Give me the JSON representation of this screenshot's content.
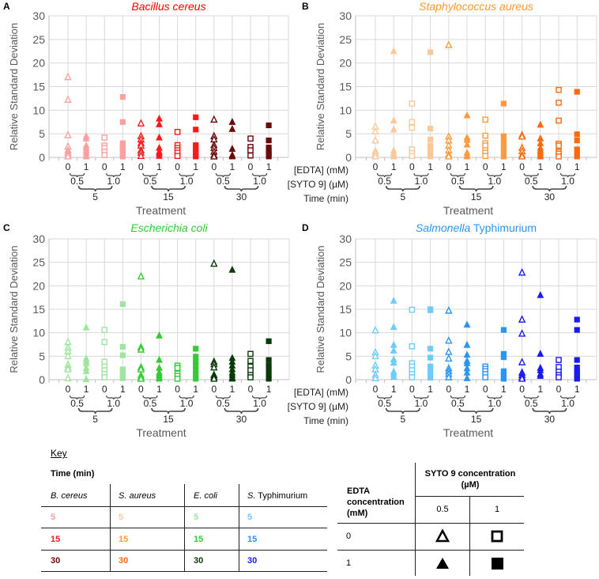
{
  "chart_data": [
    {
      "type": "scatter",
      "panel_label": "A",
      "title_parts": [
        {
          "text": "Bacillus cereus",
          "italic": true
        }
      ],
      "title_color": "#ff0000",
      "ylabel": "Relative Standard Deviation",
      "xlabel": "Treatment",
      "ylim": [
        0,
        30
      ],
      "yticks": [
        "0",
        "5",
        "10",
        "15",
        "20",
        "25",
        "30"
      ],
      "grid": true,
      "row_labels": [],
      "time_colors": {
        "5": "#f7a1a1",
        "15": "#ff1a1a",
        "30": "#6b0a0a"
      },
      "groups": [
        {
          "time": "5",
          "syto": "0.5",
          "edta": "0",
          "values": [
            17,
            12.2,
            4.7,
            2.3,
            1.5,
            1,
            0.5,
            0.2
          ]
        },
        {
          "time": "5",
          "syto": "0.5",
          "edta": "1",
          "values": [
            4.5,
            4,
            2.5,
            2,
            1.5,
            1,
            0.5,
            0.2
          ]
        },
        {
          "time": "5",
          "syto": "1.0",
          "edta": "0",
          "values": [
            4.2,
            2.5,
            2,
            1.2,
            0.5
          ]
        },
        {
          "time": "5",
          "syto": "1.0",
          "edta": "1",
          "values": [
            12.8,
            7.5,
            3,
            2.5,
            2,
            1.5,
            1,
            0.5,
            0.2
          ]
        },
        {
          "time": "15",
          "syto": "0.5",
          "edta": "0",
          "values": [
            7.2,
            4.5,
            3.8,
            3,
            2.5,
            1.5,
            1,
            0.3
          ]
        },
        {
          "time": "15",
          "syto": "0.5",
          "edta": "1",
          "values": [
            8.2,
            7,
            4.2,
            2,
            1.2,
            0.8,
            0.3
          ]
        },
        {
          "time": "15",
          "syto": "1.0",
          "edta": "0",
          "values": [
            5.4,
            2.6,
            2,
            1.5,
            1,
            0.3
          ]
        },
        {
          "time": "15",
          "syto": "1.0",
          "edta": "1",
          "values": [
            8.5,
            5.9,
            2.6,
            2,
            1.5,
            1,
            0.5,
            0.2
          ]
        },
        {
          "time": "30",
          "syto": "0.5",
          "edta": "0",
          "values": [
            8,
            4.5,
            3.8,
            2.6,
            2,
            1.2,
            0.5,
            0.2
          ]
        },
        {
          "time": "30",
          "syto": "0.5",
          "edta": "1",
          "values": [
            7.5,
            6,
            1.8,
            0.5,
            0.2
          ]
        },
        {
          "time": "30",
          "syto": "1.0",
          "edta": "0",
          "values": [
            4,
            2.2,
            1.5,
            0.4
          ]
        },
        {
          "time": "30",
          "syto": "1.0",
          "edta": "1",
          "values": [
            6.8,
            3.6,
            2.1,
            1.5,
            1,
            0.5,
            0.2
          ]
        }
      ]
    },
    {
      "type": "scatter",
      "panel_label": "B",
      "title_parts": [
        {
          "text": "Staphylococcus aureus",
          "italic": true
        }
      ],
      "title_color": "#ff9933",
      "ylabel": "Relative Standard Deviation",
      "xlabel": "Treatment",
      "ylim": [
        0,
        30
      ],
      "yticks": [
        "0",
        "5",
        "10",
        "15",
        "20",
        "25",
        "30"
      ],
      "grid": true,
      "row_labels": [
        "[EDTA] (mM)",
        "[SYTO 9] (µM)",
        "Time (min)"
      ],
      "time_colors": {
        "5": "#fbc89a",
        "15": "#ff9b3d",
        "30": "#ff6a10"
      },
      "groups": [
        {
          "time": "5",
          "syto": "0.5",
          "edta": "0",
          "values": [
            6.5,
            5.5,
            3.6,
            1.3,
            0.8,
            0.2
          ]
        },
        {
          "time": "5",
          "syto": "0.5",
          "edta": "1",
          "values": [
            22.5,
            7.8,
            5.9,
            1.4,
            0.8,
            0.2
          ]
        },
        {
          "time": "5",
          "syto": "1.0",
          "edta": "0",
          "values": [
            11.4,
            7.5,
            6.3,
            1.7,
            0.9,
            0.3
          ]
        },
        {
          "time": "5",
          "syto": "1.0",
          "edta": "1",
          "values": [
            22.3,
            6.1,
            3.8,
            2.5,
            2,
            1.5,
            1,
            0.5,
            0.2
          ]
        },
        {
          "time": "15",
          "syto": "0.5",
          "edta": "0",
          "values": [
            23.8,
            4.4,
            3.6,
            2.5,
            1.5,
            0.6,
            0.2
          ]
        },
        {
          "time": "15",
          "syto": "0.5",
          "edta": "1",
          "values": [
            8.9,
            4.2,
            3.7,
            2.7,
            1,
            0.5,
            0.2
          ]
        },
        {
          "time": "15",
          "syto": "1.0",
          "edta": "0",
          "values": [
            8,
            4.6,
            3,
            2.5,
            1.5,
            1,
            0.3
          ]
        },
        {
          "time": "15",
          "syto": "1.0",
          "edta": "1",
          "values": [
            11.4,
            4.5,
            4,
            3,
            2,
            1,
            0.2
          ]
        },
        {
          "time": "30",
          "syto": "0.5",
          "edta": "0",
          "values": [
            4.7,
            4.4,
            2,
            1.3,
            0.5,
            0.2
          ]
        },
        {
          "time": "30",
          "syto": "0.5",
          "edta": "1",
          "values": [
            6.9,
            4,
            3,
            2,
            1.5,
            1,
            0.5,
            0.2
          ]
        },
        {
          "time": "30",
          "syto": "1.0",
          "edta": "0",
          "values": [
            14.3,
            11.6,
            7.8,
            2.9,
            2.5,
            1.2,
            0.8,
            0.2
          ]
        },
        {
          "time": "30",
          "syto": "1.0",
          "edta": "1",
          "values": [
            13.9,
            4.9,
            3.6,
            1.7,
            1.2,
            0.5,
            0.2
          ]
        }
      ]
    },
    {
      "type": "scatter",
      "panel_label": "C",
      "title_parts": [
        {
          "text": "Escherichia coli",
          "italic": true
        }
      ],
      "title_color": "#33cc33",
      "ylabel": "Relative Standard Deviation",
      "xlabel": "Treatment",
      "ylim": [
        0,
        30
      ],
      "yticks": [
        "0",
        "5",
        "10",
        "15",
        "20",
        "25",
        "30"
      ],
      "grid": true,
      "row_labels": [],
      "time_colors": {
        "5": "#9fe59f",
        "15": "#33cc33",
        "30": "#0a3a0a"
      },
      "groups": [
        {
          "time": "5",
          "syto": "0.5",
          "edta": "0",
          "values": [
            8,
            6.8,
            6,
            5,
            3.2,
            2.5,
            2.2,
            0.3
          ]
        },
        {
          "time": "5",
          "syto": "0.5",
          "edta": "1",
          "values": [
            11.1,
            4.5,
            4,
            3.5,
            2.5,
            1.8,
            0.1
          ]
        },
        {
          "time": "5",
          "syto": "1.0",
          "edta": "0",
          "values": [
            10.6,
            8,
            3.8,
            2.8,
            2,
            1.2,
            0.5
          ]
        },
        {
          "time": "5",
          "syto": "1.0",
          "edta": "1",
          "values": [
            16.1,
            7,
            5.2,
            2.2,
            1.5,
            1,
            0.3
          ]
        },
        {
          "time": "15",
          "syto": "0.5",
          "edta": "0",
          "values": [
            22,
            6.9,
            6.4,
            2.6,
            2.2,
            0.9,
            0.4,
            0.2
          ]
        },
        {
          "time": "15",
          "syto": "0.5",
          "edta": "1",
          "values": [
            9.4,
            4.2,
            2.5,
            1.5,
            1,
            0.5,
            0.2
          ]
        },
        {
          "time": "15",
          "syto": "1.0",
          "edta": "0",
          "values": [
            3,
            2.5,
            1.3,
            0.8,
            0.2
          ]
        },
        {
          "time": "15",
          "syto": "1.0",
          "edta": "1",
          "values": [
            6.6,
            4.9,
            3.8,
            3,
            2,
            1,
            0.2
          ]
        },
        {
          "time": "30",
          "syto": "0.5",
          "edta": "0",
          "values": [
            24.7,
            3.8,
            3.3,
            2.6,
            1,
            0.6,
            0.2
          ]
        },
        {
          "time": "30",
          "syto": "0.5",
          "edta": "1",
          "values": [
            23.4,
            4.6,
            3.8,
            3,
            2.2,
            1.5,
            1,
            0.5,
            0.2
          ]
        },
        {
          "time": "30",
          "syto": "1.0",
          "edta": "0",
          "values": [
            5.5,
            4,
            2.8,
            2,
            1,
            0.5
          ]
        },
        {
          "time": "30",
          "syto": "1.0",
          "edta": "1",
          "values": [
            8.2,
            4.2,
            3,
            2,
            1,
            0.2
          ]
        }
      ]
    },
    {
      "type": "scatter",
      "panel_label": "D",
      "title_parts": [
        {
          "text": "Salmonella",
          "italic": true
        },
        {
          "text": " Typhimurium",
          "italic": false
        }
      ],
      "title_color": "#2b95f5",
      "ylabel": "Relative Standard Deviation",
      "xlabel": "Treatment",
      "ylim": [
        0,
        30
      ],
      "yticks": [
        "0",
        "5",
        "10",
        "15",
        "20",
        "25",
        "30"
      ],
      "grid": true,
      "row_labels": [
        "[EDTA] (mM)",
        "[SYTO 9] (µM)",
        "Time (min)"
      ],
      "time_colors": {
        "5": "#6fcbf7",
        "15": "#2b95f5",
        "30": "#1a1af0"
      },
      "groups": [
        {
          "time": "5",
          "syto": "0.5",
          "edta": "0",
          "values": [
            10.5,
            5.8,
            5,
            3,
            2.2,
            1,
            0.3
          ]
        },
        {
          "time": "5",
          "syto": "0.5",
          "edta": "1",
          "values": [
            16.8,
            11.2,
            7.4,
            6.2,
            4.3,
            3.6,
            1.7,
            1.2,
            0.6
          ]
        },
        {
          "time": "5",
          "syto": "1.0",
          "edta": "0",
          "values": [
            14.9,
            7.1,
            3.5,
            2.8,
            2,
            1.2,
            0.5
          ]
        },
        {
          "time": "5",
          "syto": "1.0",
          "edta": "1",
          "values": [
            15,
            14.8,
            6.6,
            4.7,
            2.8,
            2.4,
            1.4,
            0.9,
            0.4
          ]
        },
        {
          "time": "15",
          "syto": "0.5",
          "edta": "0",
          "values": [
            14.7,
            8.3,
            5.9,
            4.5,
            2.4,
            1.8,
            1.2,
            0.5
          ]
        },
        {
          "time": "15",
          "syto": "0.5",
          "edta": "1",
          "values": [
            11.7,
            7.4,
            5.3,
            4,
            3.5,
            2.4,
            1.5,
            0.3
          ]
        },
        {
          "time": "15",
          "syto": "1.0",
          "edta": "0",
          "values": [
            2.8,
            2.3,
            1.8,
            1.2,
            0.5
          ]
        },
        {
          "time": "15",
          "syto": "1.0",
          "edta": "1",
          "values": [
            10.6,
            5.5,
            4.8,
            1.8,
            1.2,
            0.8,
            0.2
          ]
        },
        {
          "time": "30",
          "syto": "0.5",
          "edta": "0",
          "values": [
            22.8,
            12.8,
            9.8,
            3.7,
            1.5,
            1,
            0.5,
            0.2
          ]
        },
        {
          "time": "30",
          "syto": "0.5",
          "edta": "1",
          "values": [
            18,
            5.5,
            2.5,
            2,
            1.2,
            0.8
          ]
        },
        {
          "time": "30",
          "syto": "1.0",
          "edta": "0",
          "values": [
            4.2,
            2.7,
            1.7,
            1,
            0.5
          ]
        },
        {
          "time": "30",
          "syto": "1.0",
          "edta": "1",
          "values": [
            12.8,
            10.6,
            4.2,
            2.6,
            2,
            1.5,
            1,
            0.5,
            0.2
          ]
        }
      ]
    }
  ],
  "key": {
    "title": "Key",
    "time_header": "Time (min)",
    "species": [
      {
        "name": "B. cereus",
        "italic_part": "B. cereus",
        "rest": ""
      },
      {
        "name": "S. aureus",
        "italic_part": "S. aureus",
        "rest": ""
      },
      {
        "name": "E. coli",
        "italic_part": "E. coli",
        "rest": ""
      },
      {
        "name": "S. Typhimurium",
        "italic_part": "S.",
        "rest": " Typhimurium"
      }
    ],
    "rows": [
      {
        "label": "5",
        "colors": [
          "#f7a1a1",
          "#fbc89a",
          "#9fe59f",
          "#6fcbf7"
        ]
      },
      {
        "label": "15",
        "colors": [
          "#ff1a1a",
          "#ff9b3d",
          "#33cc33",
          "#2b95f5"
        ]
      },
      {
        "label": "30",
        "colors": [
          "#6b0a0a",
          "#ff6a10",
          "#0a3a0a",
          "#1a1af0"
        ]
      }
    ],
    "marker_table": {
      "edta_header": "EDTA concentration (mM)",
      "syto_header": "SYTO 9 concentration (µM)",
      "syto_values": [
        "0.5",
        "1"
      ],
      "edta_values": [
        "0",
        "1"
      ]
    }
  }
}
